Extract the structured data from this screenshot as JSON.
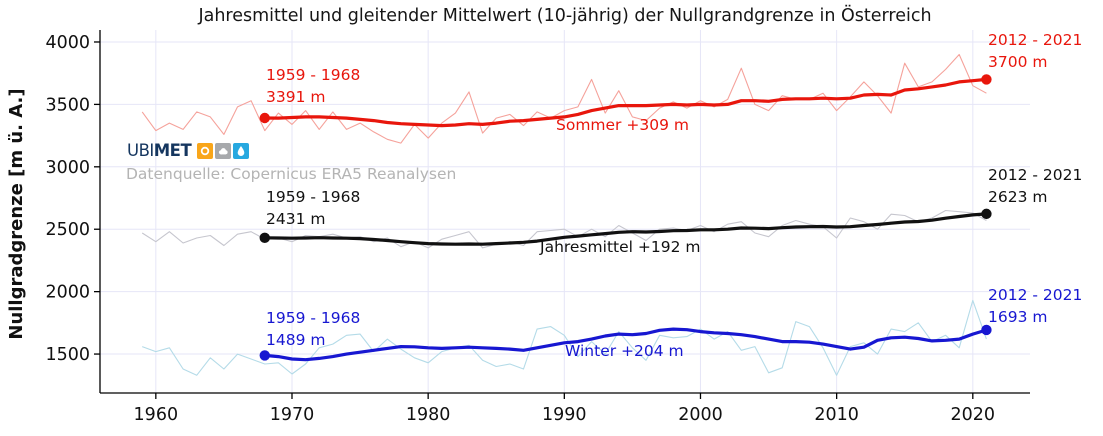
{
  "branding": {
    "logo_text_1": "UBI",
    "logo_text_2": "MET",
    "source_note": "Datenquelle: Copernicus ERA5 Reanalysen"
  },
  "chart_data": {
    "type": "line",
    "title": "Jahresmittel und gleitender Mittelwert (10-jährig) der Nullgrandgrenze in Österreich",
    "ylabel": "Nullgradgrenze [m ü. A.]",
    "xlabel": "",
    "xlim": [
      1955.9,
      2024.2
    ],
    "ylim": [
      1188,
      4096
    ],
    "xticks": [
      1960,
      1970,
      1980,
      1990,
      2000,
      2010,
      2020
    ],
    "yticks": [
      1500,
      2000,
      2500,
      3000,
      3500,
      4000
    ],
    "grid": true,
    "grid_color": "#e6e6f7",
    "years_annual": [
      1959,
      1960,
      1961,
      1962,
      1963,
      1964,
      1965,
      1966,
      1967,
      1968,
      1969,
      1970,
      1971,
      1972,
      1973,
      1974,
      1975,
      1976,
      1977,
      1978,
      1979,
      1980,
      1981,
      1982,
      1983,
      1984,
      1985,
      1986,
      1987,
      1988,
      1989,
      1990,
      1991,
      1992,
      1993,
      1994,
      1995,
      1996,
      1997,
      1998,
      1999,
      2000,
      2001,
      2002,
      2003,
      2004,
      2005,
      2006,
      2007,
      2008,
      2009,
      2010,
      2011,
      2012,
      2013,
      2014,
      2015,
      2016,
      2017,
      2018,
      2019,
      2020,
      2021
    ],
    "years_moving_average": [
      1968,
      1969,
      1970,
      1971,
      1972,
      1973,
      1974,
      1975,
      1976,
      1977,
      1978,
      1979,
      1980,
      1981,
      1982,
      1983,
      1984,
      1985,
      1986,
      1987,
      1988,
      1989,
      1990,
      1991,
      1992,
      1993,
      1994,
      1995,
      1996,
      1997,
      1998,
      1999,
      2000,
      2001,
      2002,
      2003,
      2004,
      2005,
      2006,
      2007,
      2008,
      2009,
      2010,
      2011,
      2012,
      2013,
      2014,
      2015,
      2016,
      2017,
      2018,
      2019,
      2020,
      2021
    ],
    "series": [
      {
        "name": "Sommer",
        "trend_label": "Sommer +309 m",
        "color": "#e8160c",
        "annual_color": "#f5a29b",
        "start": {
          "period": "1959 - 1968",
          "value_label": "3391 m",
          "year": 1968,
          "value": 3391
        },
        "end": {
          "period": "2012 - 2021",
          "value_label": "3700 m",
          "year": 2021,
          "value": 3700
        },
        "annual": [
          3440,
          3290,
          3350,
          3300,
          3440,
          3400,
          3260,
          3480,
          3530,
          3290,
          3430,
          3340,
          3450,
          3300,
          3440,
          3300,
          3350,
          3280,
          3220,
          3190,
          3340,
          3230,
          3350,
          3430,
          3600,
          3270,
          3390,
          3420,
          3330,
          3440,
          3390,
          3450,
          3480,
          3700,
          3430,
          3610,
          3400,
          3370,
          3470,
          3520,
          3470,
          3530,
          3480,
          3540,
          3790,
          3500,
          3450,
          3570,
          3540,
          3540,
          3590,
          3450,
          3560,
          3680,
          3570,
          3430,
          3830,
          3640,
          3680,
          3780,
          3900,
          3650,
          3590
        ],
        "moving_average": [
          3391,
          3390,
          3395,
          3400,
          3400,
          3395,
          3390,
          3380,
          3370,
          3355,
          3345,
          3340,
          3335,
          3330,
          3335,
          3345,
          3340,
          3350,
          3365,
          3370,
          3380,
          3390,
          3400,
          3420,
          3450,
          3470,
          3490,
          3490,
          3490,
          3495,
          3500,
          3495,
          3500,
          3495,
          3500,
          3530,
          3530,
          3525,
          3540,
          3545,
          3545,
          3550,
          3545,
          3550,
          3575,
          3580,
          3575,
          3615,
          3625,
          3640,
          3655,
          3680,
          3690,
          3700
        ]
      },
      {
        "name": "Jahresmittel",
        "trend_label": "Jahresmittel +192 m",
        "color": "#111111",
        "annual_color": "#c6c6ce",
        "start": {
          "period": "1959 - 1968",
          "value_label": "2431 m",
          "year": 1968,
          "value": 2431
        },
        "end": {
          "period": "2012 - 2021",
          "value_label": "2623 m",
          "year": 2021,
          "value": 2623
        },
        "annual": [
          2470,
          2400,
          2480,
          2390,
          2430,
          2450,
          2370,
          2460,
          2480,
          2420,
          2430,
          2400,
          2450,
          2440,
          2460,
          2430,
          2440,
          2400,
          2430,
          2360,
          2400,
          2350,
          2420,
          2450,
          2480,
          2350,
          2380,
          2400,
          2370,
          2480,
          2490,
          2500,
          2440,
          2500,
          2440,
          2530,
          2470,
          2410,
          2500,
          2510,
          2490,
          2530,
          2480,
          2540,
          2560,
          2470,
          2440,
          2530,
          2570,
          2540,
          2520,
          2430,
          2590,
          2560,
          2500,
          2620,
          2610,
          2560,
          2590,
          2650,
          2640,
          2630,
          2570
        ],
        "moving_average": [
          2431,
          2430,
          2428,
          2430,
          2432,
          2430,
          2428,
          2425,
          2418,
          2410,
          2400,
          2392,
          2385,
          2382,
          2380,
          2382,
          2380,
          2385,
          2390,
          2395,
          2405,
          2420,
          2435,
          2445,
          2455,
          2465,
          2475,
          2480,
          2478,
          2482,
          2488,
          2490,
          2495,
          2495,
          2500,
          2510,
          2508,
          2505,
          2512,
          2518,
          2520,
          2522,
          2518,
          2520,
          2530,
          2538,
          2548,
          2558,
          2562,
          2572,
          2588,
          2602,
          2615,
          2623
        ]
      },
      {
        "name": "Winter",
        "trend_label": "Winter +204 m",
        "color": "#1717d1",
        "annual_color": "#b4dbe8",
        "start": {
          "period": "1959 - 1968",
          "value_label": "1489 m",
          "year": 1968,
          "value": 1489
        },
        "end": {
          "period": "2012 - 2021",
          "value_label": "1693 m",
          "year": 2021,
          "value": 1693
        },
        "annual": [
          1560,
          1520,
          1550,
          1380,
          1330,
          1470,
          1380,
          1500,
          1460,
          1420,
          1430,
          1340,
          1420,
          1550,
          1580,
          1650,
          1660,
          1520,
          1620,
          1540,
          1470,
          1430,
          1520,
          1550,
          1570,
          1450,
          1400,
          1420,
          1380,
          1700,
          1720,
          1650,
          1480,
          1600,
          1500,
          1680,
          1550,
          1450,
          1650,
          1630,
          1640,
          1700,
          1620,
          1680,
          1530,
          1560,
          1350,
          1390,
          1760,
          1720,
          1550,
          1330,
          1560,
          1590,
          1500,
          1700,
          1680,
          1750,
          1600,
          1650,
          1550,
          1930,
          1620
        ],
        "moving_average": [
          1489,
          1480,
          1460,
          1455,
          1465,
          1480,
          1500,
          1515,
          1530,
          1545,
          1560,
          1558,
          1550,
          1545,
          1550,
          1555,
          1550,
          1545,
          1540,
          1530,
          1550,
          1570,
          1590,
          1600,
          1620,
          1645,
          1660,
          1655,
          1665,
          1690,
          1700,
          1695,
          1680,
          1670,
          1665,
          1655,
          1640,
          1620,
          1600,
          1600,
          1595,
          1580,
          1560,
          1540,
          1555,
          1610,
          1630,
          1635,
          1625,
          1605,
          1610,
          1620,
          1660,
          1693
        ]
      }
    ]
  }
}
